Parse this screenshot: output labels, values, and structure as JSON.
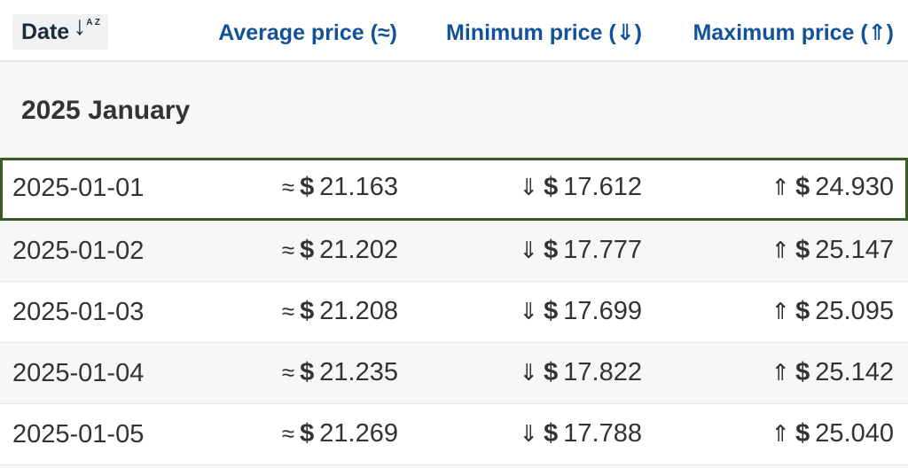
{
  "header": {
    "date_label": "Date",
    "sort_icon_glyph": "↓",
    "sort_icon_az": "A Z",
    "avg_label": "Average price (≈)",
    "min_label": "Minimum price (⇓)",
    "max_label": "Maximum price (⇑)"
  },
  "group": {
    "title": "2025 January"
  },
  "symbols": {
    "avg": "≈",
    "min": "⇓",
    "max": "⇑",
    "currency": "$"
  },
  "rows": [
    {
      "date": "2025-01-01",
      "avg": "21.163",
      "min": "17.612",
      "max": "24.930"
    },
    {
      "date": "2025-01-02",
      "avg": "21.202",
      "min": "17.777",
      "max": "25.147"
    },
    {
      "date": "2025-01-03",
      "avg": "21.208",
      "min": "17.699",
      "max": "25.095"
    },
    {
      "date": "2025-01-04",
      "avg": "21.235",
      "min": "17.822",
      "max": "25.142"
    },
    {
      "date": "2025-01-05",
      "avg": "21.269",
      "min": "17.788",
      "max": "25.040"
    }
  ],
  "colors": {
    "header_text": "#12529a",
    "highlight_border": "#3c5a24"
  }
}
